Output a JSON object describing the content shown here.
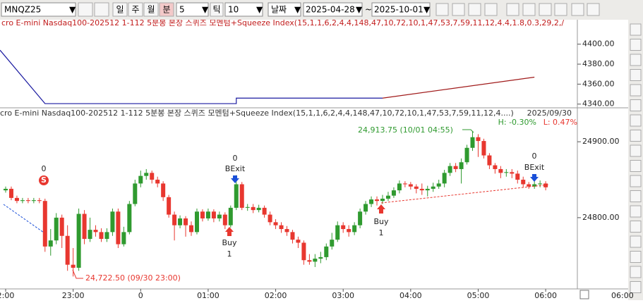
{
  "toolbar": {
    "symbol": "MNQZ25",
    "periods": [
      "일",
      "주",
      "월",
      "분"
    ],
    "minutes": "5",
    "tick_label": "틱",
    "tick_value": "10",
    "date_mode": "날짜",
    "date_from": "2025-04-28",
    "tilde": "~",
    "date_to": "2025-10-01"
  },
  "upper_panel": {
    "title": "cro E-mini Nasdaq100-202512 1-112 5분봉 본장 스퀴즈 모멘텀+Squeeze Index(15,1,1,6,2,4,4,148,47,10,72,10,1,47,53,7,59,11,12,4.4,1.8,0.3,29,2,/",
    "ylim": [
      4337,
      4416
    ],
    "yticks": [
      {
        "value": 4340,
        "label": "4340.00"
      },
      {
        "value": 4360,
        "label": "4360.00"
      },
      {
        "value": 4380,
        "label": "4380.00"
      },
      {
        "value": 4400,
        "label": "4400.00"
      }
    ],
    "series": [
      {
        "color": "#1a1aa0",
        "x": [
          -1,
          7,
          41,
          41,
          67
        ],
        "values": [
          4394,
          4340.5,
          4340.5,
          4346,
          4346
        ]
      },
      {
        "color": "#a01a1a",
        "x": [
          67,
          94
        ],
        "values": [
          4346,
          4367
        ]
      }
    ]
  },
  "lower_panel": {
    "title": "cro E-mini Nasdaq100-202512 1-112 5분봉 본장 스퀴즈 모멘텀+Squeeze Index(15,1,1,6,2,4,4,148,47,10,72,10,1,47,53,7,59,11,12,4....)",
    "date": "2025/09/30",
    "high_pct": "H: -0.30%",
    "low_pct": "L: 0.47%",
    "ylim": [
      24708,
      24941
    ],
    "yticks": [
      {
        "value": 24800,
        "label": "24800.00"
      },
      {
        "value": 24900,
        "label": "24900.00"
      }
    ],
    "up_color": "#2f9a2f",
    "down_color": "#e8372f",
    "candles": [
      [
        24836,
        24841,
        24833,
        24838
      ],
      [
        24838,
        24841,
        24823,
        24826
      ],
      [
        24826,
        24829,
        24819,
        24822
      ],
      [
        24822,
        24826,
        24819,
        24823
      ],
      [
        24823,
        24826,
        24819,
        24822
      ],
      [
        24822,
        24826,
        24819,
        24823
      ],
      [
        24823,
        24826,
        24819,
        24822
      ],
      [
        24822,
        24825,
        24755,
        24762
      ],
      [
        24762,
        24785,
        24750,
        24770
      ],
      [
        24770,
        24806,
        24765,
        24800
      ],
      [
        24800,
        24804,
        24760,
        24776
      ],
      [
        24776,
        24790,
        24730,
        24738
      ],
      [
        24738,
        24760,
        24722.5,
        24734
      ],
      [
        24734,
        24812,
        24730,
        24805
      ],
      [
        24805,
        24810,
        24765,
        24772
      ],
      [
        24772,
        24800,
        24768,
        24784
      ],
      [
        24784,
        24790,
        24775,
        24781
      ],
      [
        24781,
        24786,
        24768,
        24772
      ],
      [
        24772,
        24786,
        24768,
        24781
      ],
      [
        24781,
        24812,
        24776,
        24808
      ],
      [
        24808,
        24812,
        24760,
        24765
      ],
      [
        24765,
        24788,
        24762,
        24781
      ],
      [
        24781,
        24822,
        24778,
        24818
      ],
      [
        24818,
        24850,
        24815,
        24845
      ],
      [
        24845,
        24862,
        24840,
        24855
      ],
      [
        24855,
        24864,
        24850,
        24859
      ],
      [
        24859,
        24862,
        24845,
        24850
      ],
      [
        24850,
        24854,
        24840,
        24845
      ],
      [
        24845,
        24848,
        24822,
        24827
      ],
      [
        24827,
        24830,
        24800,
        24804
      ],
      [
        24804,
        24808,
        24770,
        24790
      ],
      [
        24790,
        24803,
        24786,
        24799
      ],
      [
        24799,
        24802,
        24775,
        24790
      ],
      [
        24790,
        24795,
        24776,
        24781
      ],
      [
        24781,
        24812,
        24778,
        24808
      ],
      [
        24808,
        24811,
        24795,
        24799
      ],
      [
        24799,
        24812,
        24796,
        24808
      ],
      [
        24808,
        24811,
        24794,
        24799
      ],
      [
        24799,
        24808,
        24795,
        24804
      ],
      [
        24804,
        24807,
        24785,
        24790
      ],
      [
        24790,
        24816,
        24787,
        24813
      ],
      [
        24813,
        24856,
        24810,
        24844
      ],
      [
        24844,
        24847,
        24810,
        24813
      ],
      [
        24813,
        24818,
        24809,
        24814
      ],
      [
        24814,
        24818,
        24806,
        24810
      ],
      [
        24810,
        24817,
        24807,
        24813
      ],
      [
        24813,
        24816,
        24800,
        24804
      ],
      [
        24804,
        24808,
        24790,
        24794
      ],
      [
        24794,
        24798,
        24785,
        24790
      ],
      [
        24790,
        24794,
        24780,
        24785
      ],
      [
        24785,
        24789,
        24776,
        24781
      ],
      [
        24781,
        24784,
        24766,
        24771
      ],
      [
        24771,
        24775,
        24760,
        24767
      ],
      [
        24767,
        24770,
        24738,
        24744
      ],
      [
        24744,
        24752,
        24738,
        24742
      ],
      [
        24742,
        24752,
        24735,
        24746
      ],
      [
        24746,
        24755,
        24740,
        24748
      ],
      [
        24748,
        24766,
        24744,
        24762
      ],
      [
        24762,
        24780,
        24758,
        24771
      ],
      [
        24771,
        24795,
        24768,
        24790
      ],
      [
        24790,
        24794,
        24780,
        24785
      ],
      [
        24785,
        24790,
        24775,
        24781
      ],
      [
        24781,
        24794,
        24777,
        24790
      ],
      [
        24790,
        24812,
        24786,
        24808
      ],
      [
        24808,
        24822,
        24804,
        24818
      ],
      [
        24818,
        24828,
        24814,
        24824
      ],
      [
        24824,
        24828,
        24816,
        24822
      ],
      [
        24822,
        24830,
        24818,
        24825
      ],
      [
        24825,
        24834,
        24822,
        24829
      ],
      [
        24829,
        24840,
        24826,
        24836
      ],
      [
        24836,
        24849,
        24832,
        24845
      ],
      [
        24845,
        24848,
        24840,
        24844
      ],
      [
        24844,
        24847,
        24837,
        24841
      ],
      [
        24841,
        24844,
        24832,
        24838
      ],
      [
        24838,
        24845,
        24830,
        24836
      ],
      [
        24836,
        24842,
        24828,
        24838
      ],
      [
        24838,
        24846,
        24834,
        24841
      ],
      [
        24841,
        24850,
        24838,
        24845
      ],
      [
        24845,
        24863,
        24840,
        24859
      ],
      [
        24859,
        24872,
        24855,
        24868
      ],
      [
        24868,
        24872,
        24860,
        24864
      ],
      [
        24864,
        24878,
        24845,
        24873
      ],
      [
        24873,
        24896,
        24870,
        24892
      ],
      [
        24892,
        24913.75,
        24888,
        24906
      ],
      [
        24906,
        24910,
        24880,
        24901
      ],
      [
        24901,
        24904,
        24878,
        24882
      ],
      [
        24882,
        24885,
        24864,
        24869
      ],
      [
        24869,
        24872,
        24858,
        24864
      ],
      [
        24864,
        24868,
        24852,
        24859
      ],
      [
        24859,
        24864,
        24854,
        24860
      ],
      [
        24860,
        24864,
        24852,
        24858
      ],
      [
        24858,
        24862,
        24845,
        24850
      ],
      [
        24850,
        24854,
        24840,
        24844
      ],
      [
        24844,
        24847,
        24838,
        24841
      ],
      [
        24841,
        24848,
        24838,
        24844
      ],
      [
        24844,
        24849,
        24840,
        24845
      ],
      [
        24845,
        24848,
        24836,
        24840
      ]
    ],
    "annotations": {
      "sell_count": "0",
      "sell_mark": "S",
      "exit1_count": "0",
      "exit1": "BExit",
      "buy1": "Buy",
      "buy1_count": "1",
      "buy2": "Buy",
      "buy2_count": "1",
      "exit2_count": "0",
      "exit2": "BExit",
      "low_label": "24,722.50 (09/30 23:00)",
      "high_label": "24,913.75 (10/01 04:55)"
    }
  },
  "x_labels": [
    "2:00",
    "23:00",
    "0",
    "01:00",
    "02:00",
    "03:00",
    "04:00",
    "05:00",
    "06:00"
  ],
  "corner_time": "06:00"
}
